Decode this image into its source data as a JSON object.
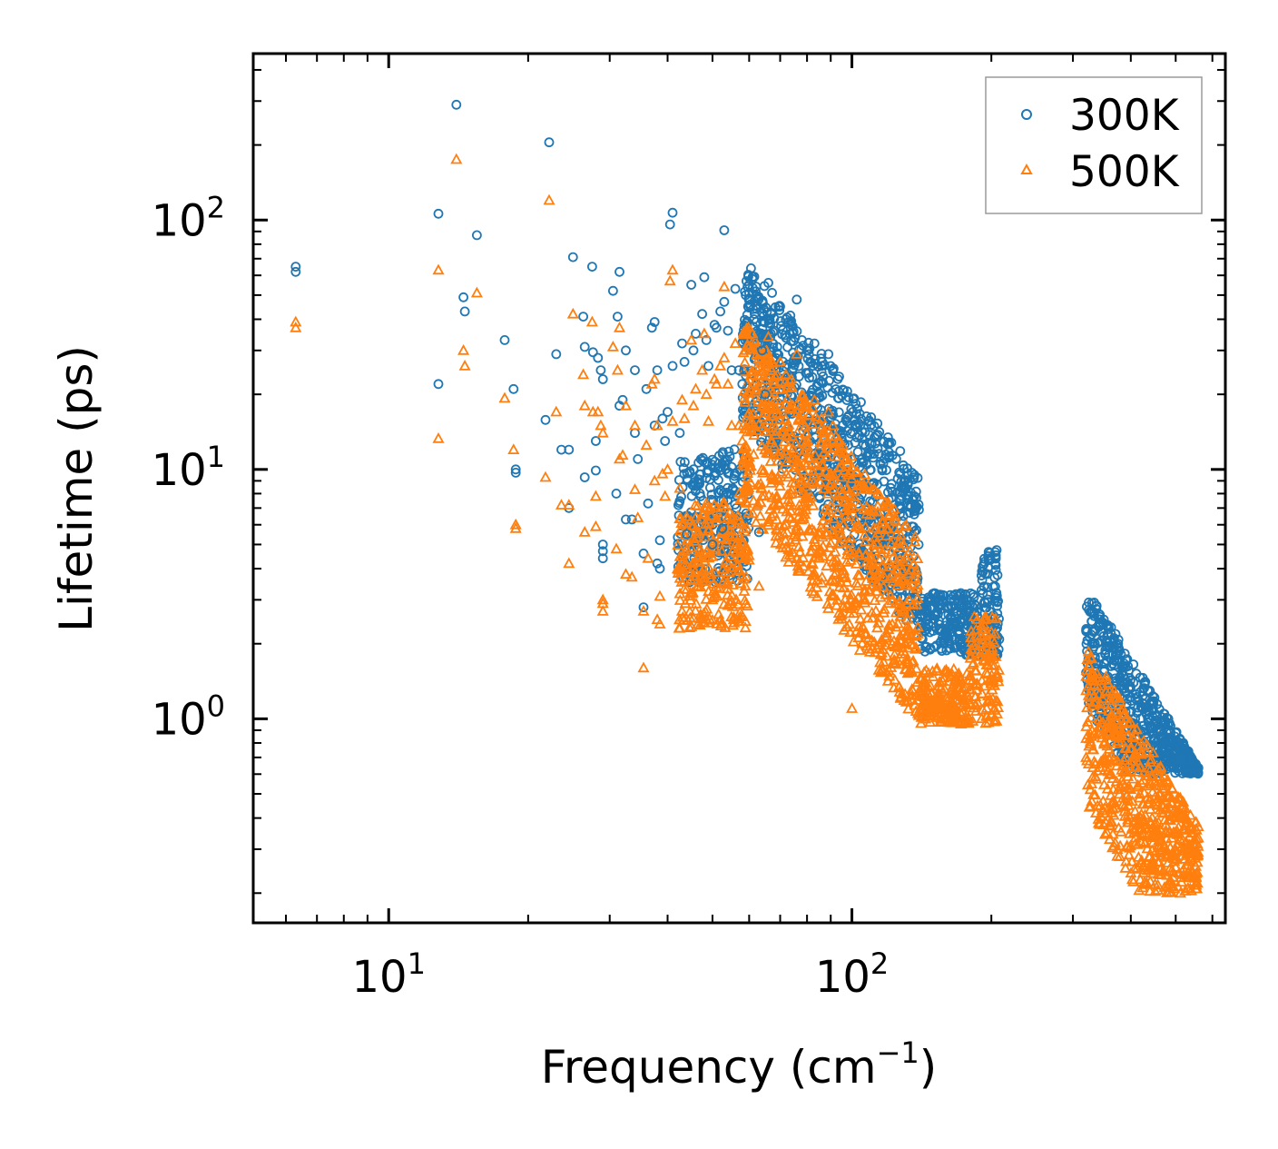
{
  "colors": {
    "s300": "#1f77b4",
    "s500": "#ff7f0e",
    "axis": "#000000",
    "legend_border": "#9a9a9a"
  },
  "chart_data": {
    "type": "scatter",
    "title": "",
    "xlabel": "Frequency (cm",
    "xlabel_sup": "−1",
    "xlabel_end": ")",
    "ylabel": "Lifetime (ps)",
    "xscale": "log",
    "yscale": "log",
    "xlim": [
      5.1,
      640
    ],
    "ylim": [
      0.152,
      465
    ],
    "x_ticks": [
      {
        "value": 10,
        "base": "10",
        "exp": "1"
      },
      {
        "value": 100,
        "base": "10",
        "exp": "2"
      }
    ],
    "y_ticks": [
      {
        "value": 1,
        "base": "10",
        "exp": "0"
      },
      {
        "value": 10,
        "base": "10",
        "exp": "1"
      },
      {
        "value": 100,
        "base": "10",
        "exp": "2"
      }
    ],
    "legend": {
      "position": "top-right",
      "entries": [
        "300K",
        "500K"
      ]
    },
    "series": [
      {
        "name": "300K",
        "marker": "circle",
        "points": [
          [
            6.3,
            65
          ],
          [
            6.3,
            62
          ],
          [
            12.8,
            106
          ],
          [
            12.8,
            22
          ],
          [
            14,
            290
          ],
          [
            14.5,
            49
          ],
          [
            14.6,
            43
          ],
          [
            15.5,
            87
          ],
          [
            17.8,
            33
          ],
          [
            18.6,
            21
          ],
          [
            18.8,
            10
          ],
          [
            18.8,
            9.7
          ],
          [
            21.8,
            15.8
          ],
          [
            22.2,
            205
          ],
          [
            23,
            29
          ],
          [
            23.6,
            12
          ],
          [
            24.5,
            12
          ],
          [
            24.5,
            7
          ],
          [
            25,
            71
          ],
          [
            26.3,
            41
          ],
          [
            26.5,
            31
          ],
          [
            26.5,
            9.3
          ],
          [
            27.5,
            65
          ],
          [
            27.6,
            29.5
          ],
          [
            28,
            13
          ],
          [
            28,
            9.9
          ],
          [
            28.3,
            28
          ],
          [
            28.7,
            25
          ],
          [
            29,
            23
          ],
          [
            29,
            5
          ],
          [
            29,
            4.7
          ],
          [
            29,
            4.4
          ],
          [
            30.5,
            52
          ],
          [
            31,
            8
          ],
          [
            31.2,
            41
          ],
          [
            31.5,
            62
          ],
          [
            31.5,
            18
          ],
          [
            32,
            19
          ],
          [
            32.5,
            6.3
          ],
          [
            32.5,
            30
          ],
          [
            33.5,
            6.3
          ],
          [
            34,
            25
          ],
          [
            34,
            14
          ],
          [
            34.5,
            11
          ],
          [
            35.5,
            4.6
          ],
          [
            35.5,
            2.8
          ],
          [
            36,
            21
          ],
          [
            36.3,
            7.3
          ],
          [
            37,
            37
          ],
          [
            37.5,
            15
          ],
          [
            37.5,
            39
          ],
          [
            38,
            4.2
          ],
          [
            38,
            25
          ],
          [
            38.5,
            5.2
          ],
          [
            38.5,
            4
          ],
          [
            39,
            16
          ],
          [
            39.5,
            13
          ],
          [
            40,
            17
          ],
          [
            40.5,
            96
          ],
          [
            41,
            107
          ],
          [
            41,
            26
          ],
          [
            42.5,
            14
          ],
          [
            43,
            32
          ],
          [
            43.5,
            27
          ],
          [
            44,
            5.5
          ],
          [
            45,
            55
          ],
          [
            45.5,
            30
          ],
          [
            46,
            35
          ],
          [
            47,
            8
          ],
          [
            47.5,
            42
          ],
          [
            48,
            59
          ],
          [
            48.5,
            33
          ],
          [
            49,
            26
          ],
          [
            50,
            5
          ],
          [
            50.5,
            38
          ],
          [
            51,
            37
          ],
          [
            52,
            43
          ],
          [
            52.5,
            5.8
          ],
          [
            53,
            47
          ],
          [
            53,
            91
          ],
          [
            54,
            36
          ],
          [
            55,
            25
          ],
          [
            56,
            53
          ],
          [
            57,
            25
          ],
          [
            58,
            22
          ],
          [
            59,
            50
          ],
          [
            60,
            51
          ],
          [
            61,
            58
          ],
          [
            62,
            35
          ],
          [
            63,
            5.6
          ],
          [
            64,
            30
          ],
          [
            65,
            20
          ],
          [
            66,
            56
          ],
          [
            67,
            42
          ],
          [
            68,
            36
          ],
          [
            69,
            31
          ],
          [
            70,
            45
          ],
          [
            72,
            40
          ],
          [
            74,
            38
          ],
          [
            76,
            48
          ],
          [
            78,
            33
          ],
          [
            80,
            30
          ],
          [
            83,
            32
          ],
          [
            86,
            26
          ],
          [
            89,
            29
          ],
          [
            91,
            25
          ]
        ]
      },
      {
        "name": "500K",
        "marker": "triangle",
        "points": [
          [
            6.3,
            39
          ],
          [
            6.3,
            37
          ],
          [
            12.8,
            63
          ],
          [
            12.8,
            13.3
          ],
          [
            14,
            175
          ],
          [
            14.5,
            30
          ],
          [
            14.6,
            26
          ],
          [
            15.5,
            51
          ],
          [
            17.8,
            19.3
          ],
          [
            18.6,
            12
          ],
          [
            18.8,
            6
          ],
          [
            18.8,
            5.8
          ],
          [
            21.8,
            9.3
          ],
          [
            22.2,
            120
          ],
          [
            23,
            17
          ],
          [
            23.6,
            7.2
          ],
          [
            24.5,
            7.2
          ],
          [
            24.5,
            4.2
          ],
          [
            25,
            42
          ],
          [
            26.3,
            24
          ],
          [
            26.5,
            18
          ],
          [
            26.5,
            5.6
          ],
          [
            27.5,
            39
          ],
          [
            27.6,
            17
          ],
          [
            28,
            7.8
          ],
          [
            28,
            5.9
          ],
          [
            28.3,
            17
          ],
          [
            28.7,
            15
          ],
          [
            29,
            14
          ],
          [
            29,
            3
          ],
          [
            29,
            2.9
          ],
          [
            29,
            2.7
          ],
          [
            30.5,
            31
          ],
          [
            31,
            4.8
          ],
          [
            31.2,
            25
          ],
          [
            31.5,
            37
          ],
          [
            31.5,
            11
          ],
          [
            32,
            11.4
          ],
          [
            32.5,
            3.8
          ],
          [
            32.5,
            18
          ],
          [
            33.5,
            3.7
          ],
          [
            34,
            15
          ],
          [
            34,
            8.3
          ],
          [
            34.5,
            6.4
          ],
          [
            35.5,
            2.7
          ],
          [
            35.5,
            1.6
          ],
          [
            36,
            12.5
          ],
          [
            36.3,
            4.4
          ],
          [
            37,
            22
          ],
          [
            37.5,
            9
          ],
          [
            37.5,
            23
          ],
          [
            38,
            2.5
          ],
          [
            38,
            15
          ],
          [
            38.5,
            3.1
          ],
          [
            38.5,
            2.4
          ],
          [
            39,
            9.6
          ],
          [
            39.5,
            7.8
          ],
          [
            40,
            10
          ],
          [
            40.5,
            57
          ],
          [
            41,
            63
          ],
          [
            41,
            15.6
          ],
          [
            42.5,
            8.4
          ],
          [
            43,
            19
          ],
          [
            43.5,
            16
          ],
          [
            44,
            3.3
          ],
          [
            45,
            33
          ],
          [
            45.5,
            18
          ],
          [
            46,
            21
          ],
          [
            47,
            4.8
          ],
          [
            47.5,
            25
          ],
          [
            48,
            35
          ],
          [
            48.5,
            20
          ],
          [
            49,
            15.6
          ],
          [
            50,
            3
          ],
          [
            50.5,
            23
          ],
          [
            51,
            22
          ],
          [
            52,
            26
          ],
          [
            52.5,
            3.5
          ],
          [
            53,
            28
          ],
          [
            53,
            54
          ],
          [
            54,
            22
          ],
          [
            55,
            15
          ],
          [
            56,
            32
          ],
          [
            57,
            15
          ],
          [
            58,
            13
          ],
          [
            59,
            30
          ],
          [
            60,
            31
          ],
          [
            61,
            35
          ],
          [
            62,
            21
          ],
          [
            63,
            3.4
          ],
          [
            64,
            18
          ],
          [
            65,
            12
          ],
          [
            66,
            34
          ],
          [
            67,
            25
          ],
          [
            68,
            22
          ],
          [
            69,
            19
          ],
          [
            70,
            27
          ],
          [
            72,
            24
          ],
          [
            74,
            23
          ],
          [
            76,
            29
          ],
          [
            78,
            20
          ],
          [
            80,
            18
          ],
          [
            83,
            19
          ],
          [
            86,
            16
          ],
          [
            89,
            17
          ],
          [
            91,
            15
          ],
          [
            100,
            1.1
          ]
        ]
      }
    ]
  }
}
